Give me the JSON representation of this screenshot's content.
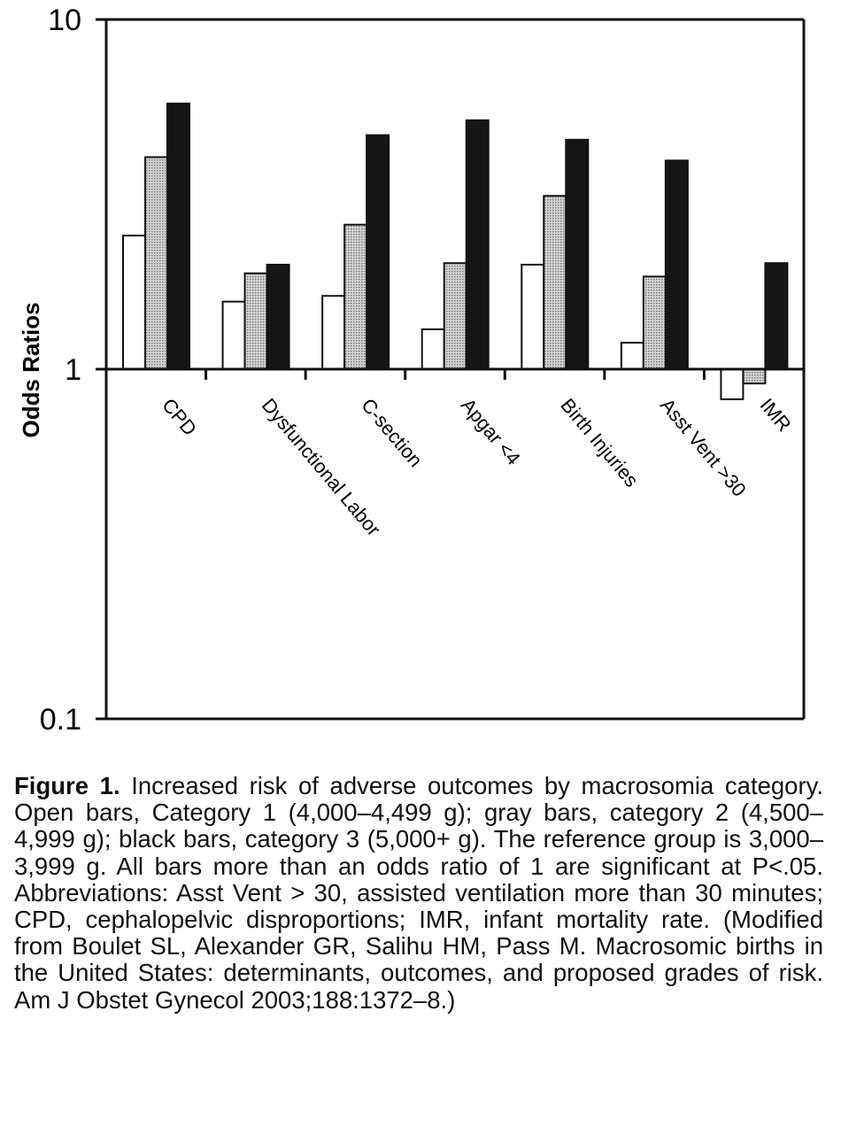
{
  "chart_data": {
    "type": "bar",
    "title": "",
    "xlabel": "",
    "ylabel": "Odds Ratios",
    "y_scale": "log",
    "ylim": [
      0.1,
      10
    ],
    "baseline": 1,
    "y_ticks": [
      "0.1",
      "1",
      "10"
    ],
    "grid": false,
    "categories": [
      "CPD",
      "Dysfunctional Labor",
      "C-section",
      "Apgar <4",
      "Birth Injuries",
      "Asst Vent >30",
      "IMR"
    ],
    "series": [
      {
        "fill": "#ffffff",
        "values": [
          2.41,
          1.56,
          1.62,
          1.3,
          1.99,
          1.19,
          0.82
        ]
      },
      {
        "fill": "#b8b8b8",
        "values": [
          4.04,
          1.88,
          2.59,
          2.01,
          3.13,
          1.84,
          0.91
        ]
      },
      {
        "fill": "#161616",
        "values": [
          5.75,
          1.99,
          4.67,
          5.15,
          4.53,
          3.95,
          2.01
        ]
      }
    ]
  },
  "caption": {
    "label": "Figure 1.",
    "text": "Increased risk of adverse outcomes by macrosomia category. Open bars, Category 1 (4,000–4,499 g); gray bars, category 2 (4,500–4,999 g); black bars, category 3 (5,000+ g). The reference group is 3,000–3,999 g. All bars more than an odds ratio of 1 are significant at P<.05. Abbreviations: Asst Vent > 30, assisted ventilation more than 30 minutes; CPD, cephalopelvic disproportions; IMR, infant mortality rate. (Modified from Boulet SL, Alexander GR, Salihu HM, Pass M. Macrosomic births in the United States: determinants, outcomes, and proposed grades of risk. Am J Obstet Gynecol 2003;188:1372–8.)"
  }
}
